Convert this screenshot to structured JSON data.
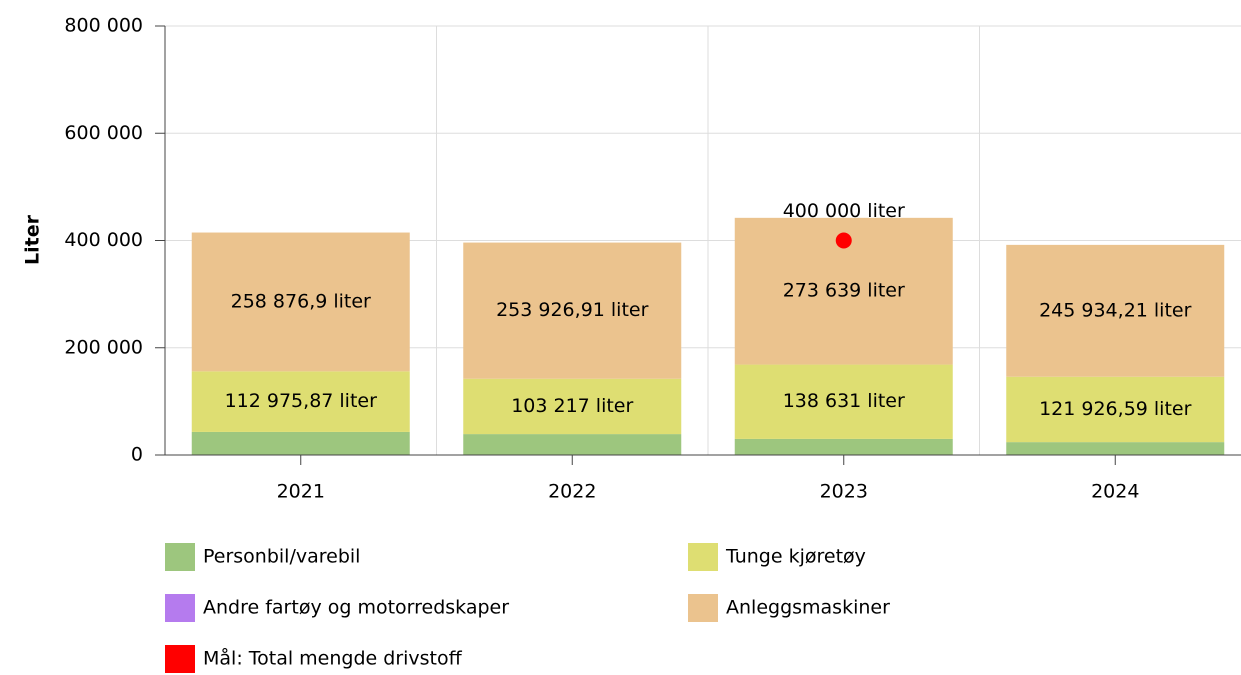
{
  "chart_data": {
    "type": "stacked_bar",
    "y_label": "Liter",
    "categories": [
      "2021",
      "2022",
      "2023",
      "2024"
    ],
    "series": [
      {
        "name": "Personbil/varebil",
        "color": "#9dc67e",
        "values": [
          43000,
          39000,
          30000,
          24000
        ]
      },
      {
        "name": "Tunge kjøretøy",
        "color": "#dede72",
        "values": [
          112975.87,
          103217,
          138631,
          121926.59
        ],
        "value_labels": [
          "112 975,87 liter",
          "103 217 liter",
          "138 631 liter",
          "121 926,59 liter"
        ]
      },
      {
        "name": "Andre fartøy og motorredskaper",
        "color": "#b57bee",
        "values": [
          0,
          0,
          0,
          0
        ]
      },
      {
        "name": "Anleggsmaskiner",
        "color": "#ebc38e",
        "values": [
          258876.9,
          253926.91,
          273639,
          245934.21
        ],
        "value_labels": [
          "258 876,9 liter",
          "253 926,91 liter",
          "273 639 liter",
          "245 934,21 liter"
        ]
      }
    ],
    "target": {
      "name": "Mål: Total mengde drivstoff",
      "color": "#ff0000",
      "values": [
        null,
        null,
        400000,
        null
      ],
      "value_labels": [
        null,
        null,
        "400 000 liter",
        null
      ]
    },
    "ylim": [
      0,
      800000
    ],
    "yticks": [
      0,
      {
        "value": 200000,
        "label": "200 000"
      },
      {
        "value": 400000,
        "label": "400 000"
      },
      {
        "value": 600000,
        "label": "600 000"
      },
      {
        "value": 800000,
        "label": "800 000"
      }
    ],
    "grid": true
  }
}
